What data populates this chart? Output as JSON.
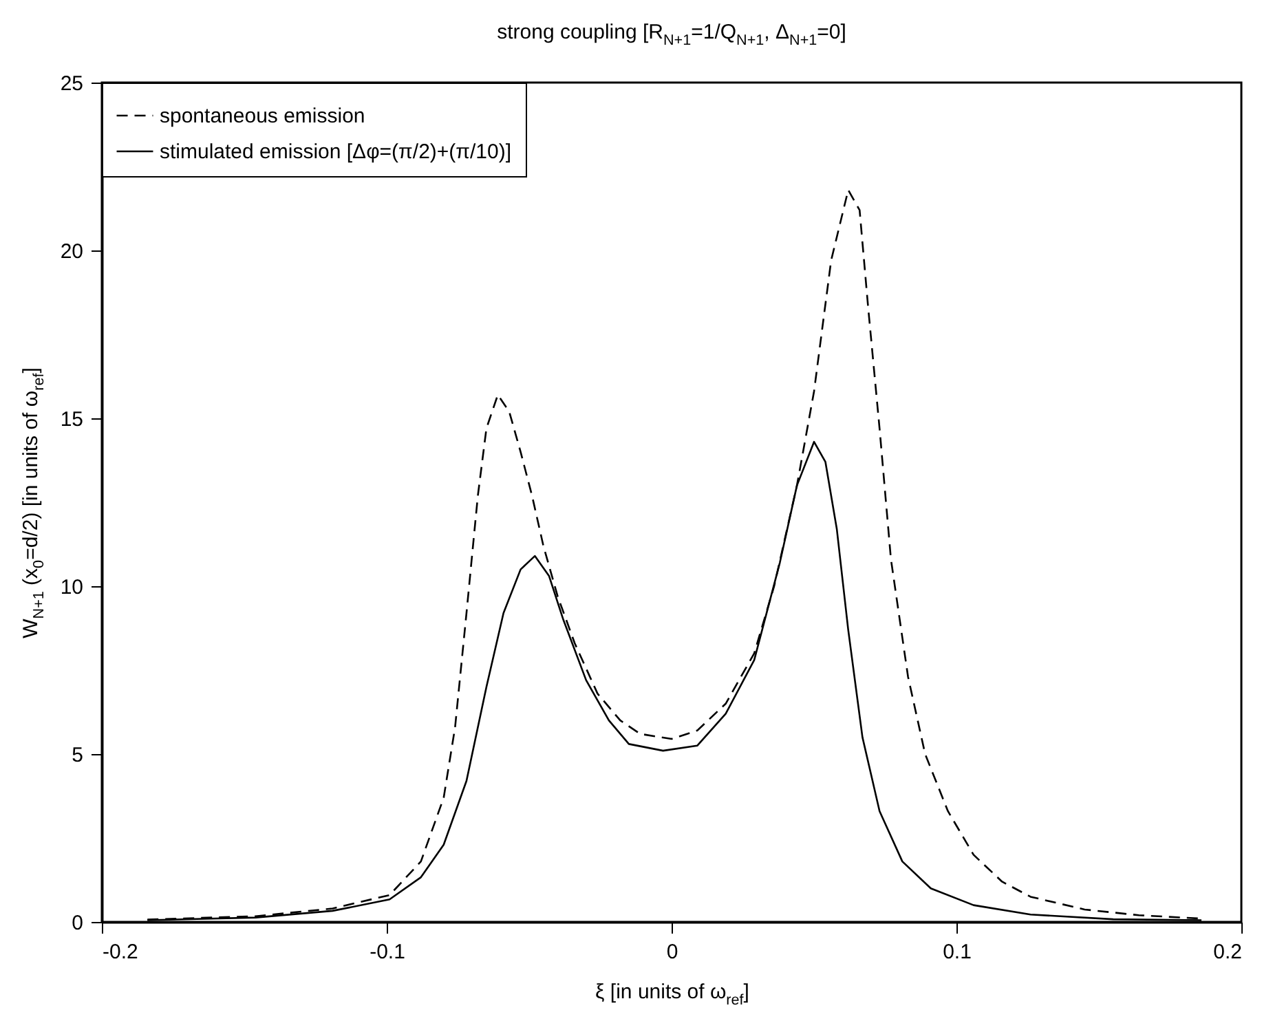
{
  "chart_data": {
    "type": "line",
    "title": "strong coupling [R$_{N+1}$=1/Q$_{N+1}$, Δ$_{N+1}$=0]",
    "xlabel": "ξ [in units of ω$_{ref}$]",
    "ylabel": "W$_{N+1}$ (x$_{0}$=d/2) [in units of ω$_{ref}$]",
    "xlim": [
      -0.2,
      0.2
    ],
    "xticks": [
      -0.2,
      -0.1,
      0,
      0.1,
      0.2
    ],
    "ylim": [
      0,
      25
    ],
    "yticks": [
      0,
      5,
      10,
      15,
      20,
      25
    ],
    "grid": false,
    "legend": "top left",
    "series": [
      {
        "name": "spontaneous emission",
        "color": "#000000",
        "line_style": "dashed",
        "x": [
          -0.184,
          -0.146,
          -0.119,
          -0.099,
          -0.088,
          -0.08,
          -0.076,
          -0.072,
          -0.068,
          -0.065,
          -0.061,
          -0.057,
          -0.053,
          -0.049,
          -0.045,
          -0.04,
          -0.034,
          -0.026,
          -0.018,
          -0.011,
          0,
          0.009,
          0.019,
          0.029,
          0.036,
          0.044,
          0.05,
          0.056,
          0.062,
          0.066,
          0.069,
          0.073,
          0.077,
          0.083,
          0.089,
          0.097,
          0.106,
          0.116,
          0.126,
          0.145,
          0.164,
          0.186
        ],
        "values": [
          0.07,
          0.17,
          0.4,
          0.8,
          1.8,
          3.7,
          5.8,
          9.2,
          12.7,
          14.7,
          15.7,
          15.2,
          14,
          12.7,
          11.2,
          9.7,
          8.3,
          6.8,
          6,
          5.6,
          5.45,
          5.7,
          6.5,
          8,
          10,
          13,
          15.8,
          19.7,
          21.8,
          21.2,
          18.3,
          14.7,
          10.8,
          7.3,
          5,
          3.3,
          2,
          1.2,
          0.75,
          0.37,
          0.2,
          0.1
        ]
      },
      {
        "name": "stimulated emission [Δφ=(π/2)+(π/10)]",
        "color": "#000000",
        "line_style": "solid",
        "x": [
          -0.184,
          -0.146,
          -0.119,
          -0.099,
          -0.088,
          -0.08,
          -0.072,
          -0.065,
          -0.059,
          -0.053,
          -0.048,
          -0.043,
          -0.038,
          -0.03,
          -0.022,
          -0.015,
          -0.003,
          0.009,
          0.019,
          0.029,
          0.038,
          0.044,
          0.05,
          0.054,
          0.058,
          0.062,
          0.067,
          0.073,
          0.081,
          0.091,
          0.106,
          0.126,
          0.155,
          0.186
        ],
        "values": [
          0.05,
          0.13,
          0.33,
          0.67,
          1.33,
          2.3,
          4.2,
          7,
          9.2,
          10.5,
          10.9,
          10.3,
          9,
          7.2,
          6,
          5.3,
          5.1,
          5.25,
          6.2,
          7.8,
          10.7,
          13,
          14.3,
          13.7,
          11.7,
          8.7,
          5.5,
          3.3,
          1.8,
          1,
          0.5,
          0.22,
          0.08,
          0.05
        ]
      }
    ]
  }
}
